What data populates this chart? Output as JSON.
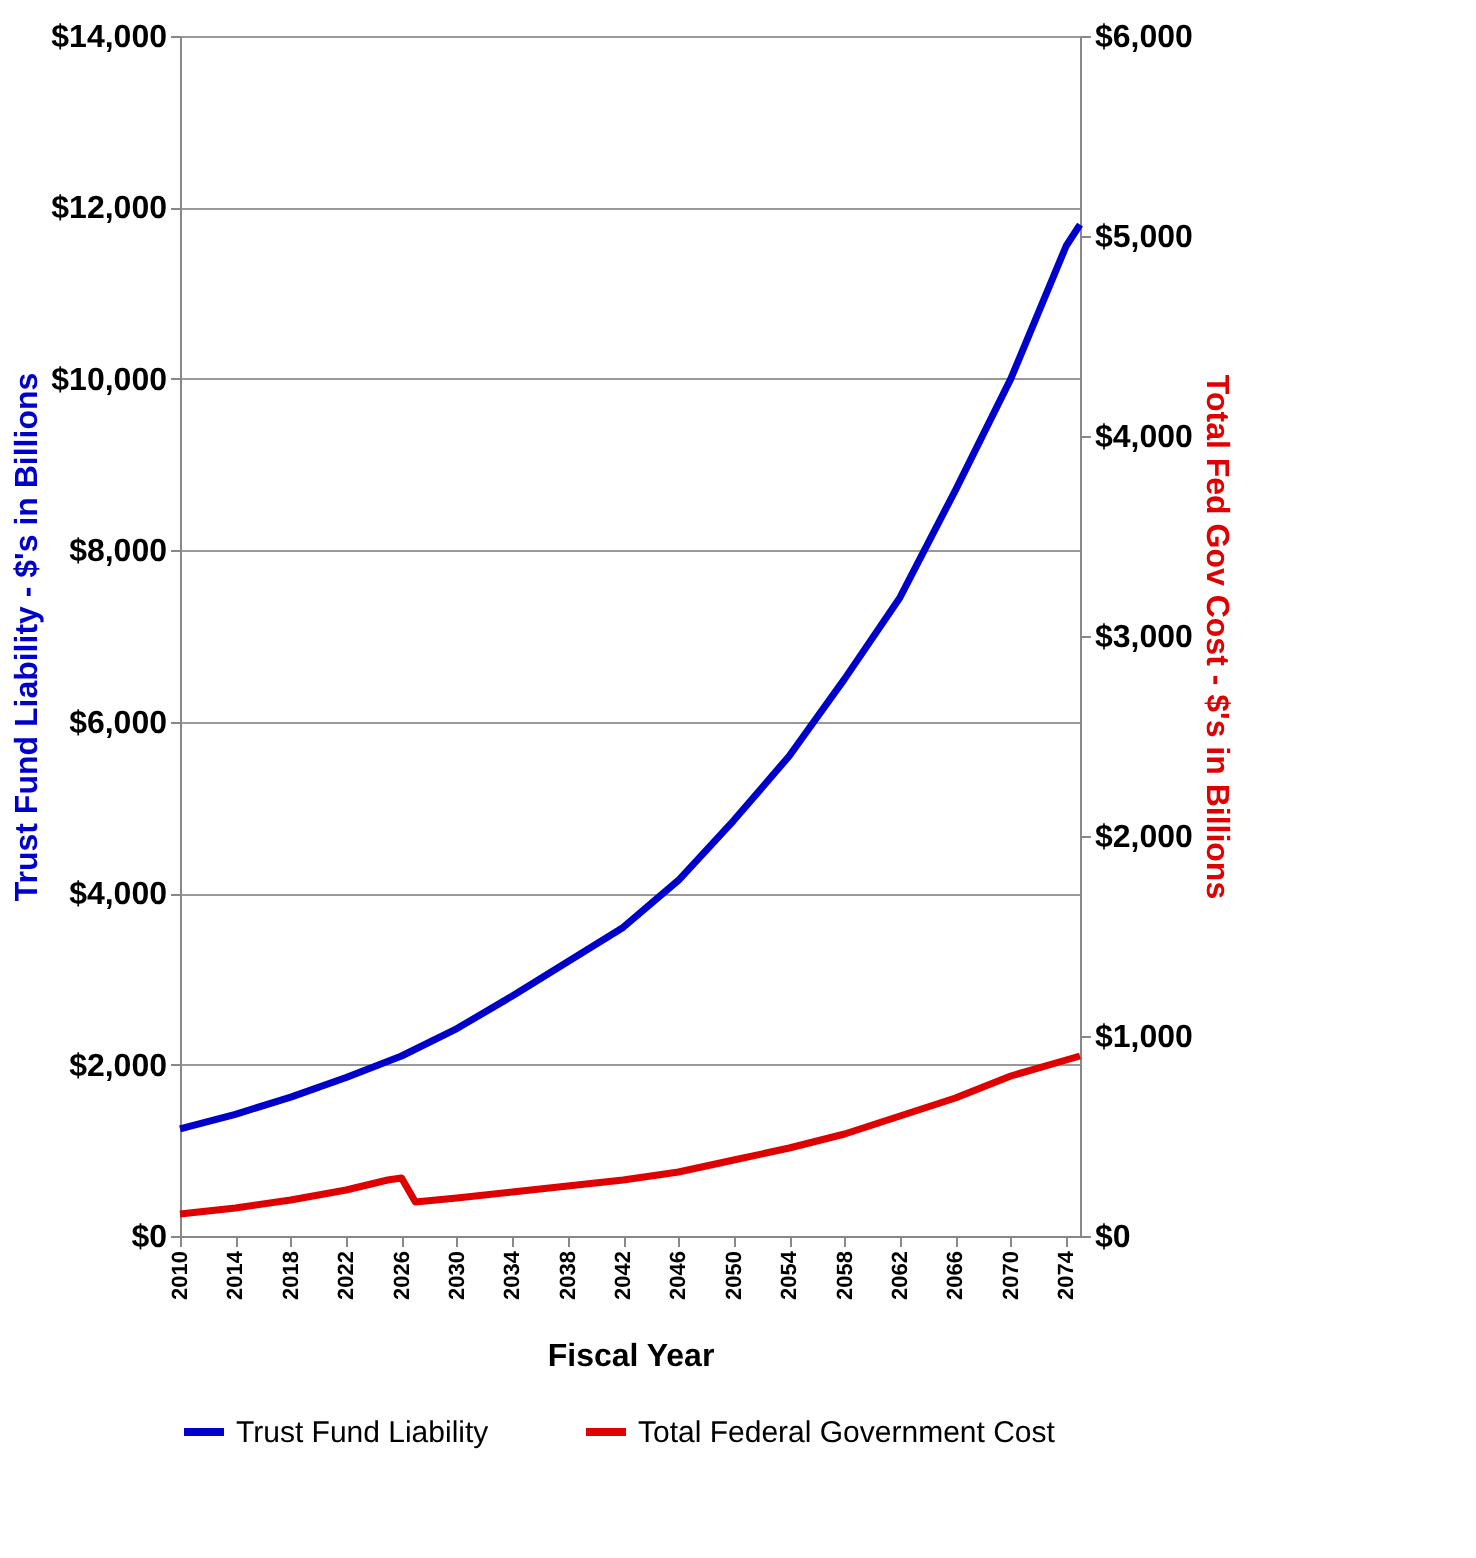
{
  "chart_data": {
    "type": "line",
    "xlabel": "Fiscal Year",
    "ylabel": "Trust Fund Liability - $'s in Billions",
    "y2label": "Total Fed Gov Cost - $'s in Billions",
    "xlim": [
      2010,
      2075
    ],
    "xticks": [
      2010,
      2014,
      2018,
      2022,
      2026,
      2030,
      2034,
      2038,
      2042,
      2046,
      2050,
      2054,
      2058,
      2062,
      2066,
      2070,
      2074
    ],
    "ylim": [
      0,
      14000
    ],
    "yticks": [
      {
        "value": 0,
        "label": "$0"
      },
      {
        "value": 2000,
        "label": "$2,000"
      },
      {
        "value": 4000,
        "label": "$4,000"
      },
      {
        "value": 6000,
        "label": "$6,000"
      },
      {
        "value": 8000,
        "label": "$8,000"
      },
      {
        "value": 10000,
        "label": "$10,000"
      },
      {
        "value": 12000,
        "label": "$12,000"
      },
      {
        "value": 14000,
        "label": "$14,000"
      }
    ],
    "y2lim": [
      0,
      6000
    ],
    "y2ticks": [
      {
        "value": 0,
        "label": "$0"
      },
      {
        "value": 1000,
        "label": "$1,000"
      },
      {
        "value": 2000,
        "label": "$2,000"
      },
      {
        "value": 3000,
        "label": "$3,000"
      },
      {
        "value": 4000,
        "label": "$4,000"
      },
      {
        "value": 5000,
        "label": "$5,000"
      },
      {
        "value": 6000,
        "label": "$6,000"
      }
    ],
    "grid": "y",
    "legend": "bottom",
    "marker": "none",
    "line_style": "solid",
    "series": [
      {
        "name": "Trust Fund Liability",
        "color": "#0000cc",
        "x": [
          2010,
          2014,
          2018,
          2022,
          2026,
          2030,
          2034,
          2038,
          2042,
          2046,
          2050,
          2054,
          2058,
          2062,
          2066,
          2070,
          2074,
          2075
        ],
        "values": [
          1250,
          1420,
          1620,
          1850,
          2100,
          2420,
          2800,
          3200,
          3600,
          4150,
          4850,
          5600,
          6500,
          7450,
          8700,
          10000,
          11550,
          11800
        ]
      },
      {
        "name": "Total Federal Government Cost",
        "color": "#e00000",
        "axis": "y2",
        "x": [
          2010,
          2014,
          2018,
          2022,
          2025,
          2026,
          2027,
          2030,
          2034,
          2038,
          2042,
          2046,
          2050,
          2054,
          2058,
          2062,
          2066,
          2070,
          2074,
          2075
        ],
        "values": [
          110,
          140,
          180,
          230,
          280,
          290,
          170,
          190,
          220,
          250,
          280,
          320,
          380,
          440,
          510,
          600,
          690,
          800,
          880,
          900
        ]
      }
    ]
  }
}
